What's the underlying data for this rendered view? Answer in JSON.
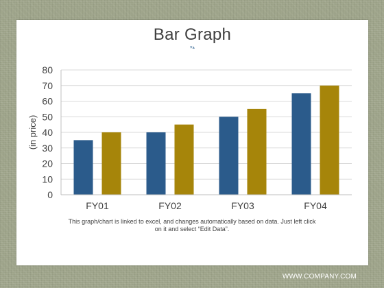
{
  "slide": {
    "title": "Bar Graph",
    "ornament": "▾▴",
    "caption": "This graph/chart is linked to excel, and changes automatically based on data. Just left click on it and select “Edit Data”.",
    "footer": "WWW.COMPANY.COM"
  },
  "colors": {
    "series1": "#2b5b8b",
    "series2": "#a6850a",
    "gridline": "#d9d9d9",
    "axis": "#bfbfbf",
    "text": "#404040"
  },
  "chart_data": {
    "type": "bar",
    "title": "",
    "xlabel": "",
    "ylabel": "(in price)",
    "categories": [
      "FY01",
      "FY02",
      "FY03",
      "FY04"
    ],
    "series": [
      {
        "values": [
          35,
          40,
          50,
          65
        ]
      },
      {
        "values": [
          40,
          45,
          55,
          70
        ]
      }
    ],
    "ylim": [
      0,
      80
    ],
    "yticks": [
      0,
      10,
      20,
      30,
      40,
      50,
      60,
      70,
      80
    ],
    "grid": true
  }
}
